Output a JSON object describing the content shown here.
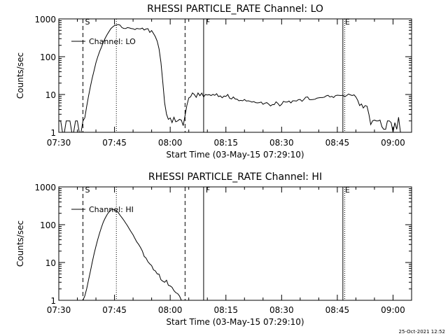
{
  "timestamp": "25-Oct-2021 12:52",
  "chart_data": [
    {
      "type": "line",
      "title": "RHESSI PARTICLE_RATE Channel: LO",
      "xlabel": "Start Time (03-May-15 07:29:10)",
      "ylabel": "Counts/sec",
      "yscale": "log",
      "xlim_minutes": [
        0,
        95
      ],
      "ylim": [
        1,
        1000
      ],
      "x_ticks": [
        {
          "min": 0,
          "label": "07:30"
        },
        {
          "min": 15,
          "label": "07:45"
        },
        {
          "min": 30,
          "label": "08:00"
        },
        {
          "min": 45,
          "label": "08:15"
        },
        {
          "min": 60,
          "label": "08:30"
        },
        {
          "min": 75,
          "label": "08:45"
        },
        {
          "min": 90,
          "label": "09:00"
        }
      ],
      "y_ticks": [
        {
          "value": 1,
          "label": "1"
        },
        {
          "value": 10,
          "label": "10"
        },
        {
          "value": 100,
          "label": "100"
        },
        {
          "value": 1000,
          "label": "1000"
        }
      ],
      "legend": {
        "label": "Channel: LO",
        "placement": "top-left"
      },
      "markers": [
        {
          "min": 6.5,
          "style": "dashed",
          "label": "S"
        },
        {
          "min": 15.5,
          "style": "dotted",
          "label": ""
        },
        {
          "min": 34,
          "style": "dashed",
          "label": ""
        },
        {
          "min": 39,
          "style": "solid",
          "label": "F"
        },
        {
          "min": 76.5,
          "style": "solid",
          "label": "E"
        },
        {
          "min": 77,
          "style": "dotted",
          "label": ""
        },
        {
          "min": 95,
          "style": "dotted",
          "label": ""
        }
      ],
      "series": [
        {
          "name": "Channel: LO",
          "x": [
            0,
            0.5,
            1,
            1.5,
            2,
            2.5,
            3,
            3.5,
            4,
            4.5,
            5,
            5.5,
            6,
            6.5,
            7,
            7.5,
            8,
            8.5,
            9,
            9.5,
            10,
            10.5,
            11,
            11.5,
            12,
            12.5,
            13,
            13.5,
            14,
            14.5,
            15,
            15.5,
            16,
            16.5,
            17,
            17.5,
            18,
            18.5,
            19,
            19.5,
            20,
            20.5,
            21,
            21.5,
            22,
            22.5,
            23,
            23.5,
            24,
            24.5,
            25,
            25.5,
            26,
            26.5,
            27,
            27.5,
            28,
            28.5,
            29,
            29.5,
            30,
            30.5,
            31,
            31.5,
            32,
            32.5,
            33,
            33.5,
            34,
            34.5,
            35,
            35.5,
            36,
            36.5,
            37,
            37.5,
            38,
            38.5,
            39,
            39.5,
            40,
            40.5,
            41,
            41.5,
            42,
            42.5,
            43,
            43.5,
            44,
            44.5,
            45,
            45.5,
            46,
            46.5,
            47,
            47.5,
            48,
            48.5,
            49,
            49.5,
            50,
            50.5,
            51,
            51.5,
            52,
            52.5,
            53,
            53.5,
            54,
            54.5,
            55,
            55.5,
            56,
            56.5,
            57,
            57.5,
            58,
            58.5,
            59,
            59.5,
            60,
            60.5,
            61,
            61.5,
            62,
            62.5,
            63,
            63.5,
            64,
            64.5,
            65,
            65.5,
            66,
            66.5,
            67,
            67.5,
            68,
            68.5,
            69,
            69.5,
            70,
            70.5,
            71,
            71.5,
            72,
            72.5,
            73,
            73.5,
            74,
            74.5,
            75,
            75.5,
            76,
            76.5,
            77,
            77.5,
            78,
            78.5,
            79,
            79.5,
            80,
            80.5,
            81,
            81.5,
            82,
            82.5,
            83,
            83.5,
            84,
            84.5,
            85,
            85.5,
            86,
            86.5,
            87,
            87.5,
            88,
            88.5,
            89,
            89.5,
            90,
            90.5,
            91,
            91.5,
            92,
            92.5,
            93,
            93.5,
            94,
            94.5,
            95
          ],
          "y": [
            2,
            2,
            1,
            1,
            2,
            2,
            2,
            1,
            1,
            2,
            2,
            1,
            1,
            2,
            2.4,
            4.8,
            8.9,
            16,
            27,
            43,
            70,
            100,
            139,
            180,
            246,
            310,
            383,
            459,
            550,
            612,
            668,
            690,
            710,
            685,
            590,
            560,
            556,
            590,
            578,
            558,
            548,
            520,
            560,
            548,
            545,
            572,
            507,
            541,
            552,
            440,
            490,
            410,
            339,
            257,
            162,
            71,
            22,
            6,
            3,
            2.2,
            2.4,
            1.8,
            2.5,
            1.9,
            2,
            2.2,
            2.1,
            1.5,
            2.8,
            5.2,
            8.1,
            8.7,
            11,
            10,
            8.4,
            11,
            9.3,
            10.9,
            8.6,
            10,
            9.7,
            9.9,
            9.4,
            10.1,
            9.5,
            10.5,
            8.8,
            9.2,
            8.2,
            9.1,
            8.9,
            10,
            8,
            7.6,
            8.6,
            7.6,
            7.5,
            6.8,
            7,
            6.8,
            7.4,
            6.7,
            6.8,
            6.6,
            6.3,
            6.5,
            6.1,
            6,
            6.1,
            6.3,
            5.5,
            5.9,
            6.1,
            5.6,
            5,
            5.4,
            5.4,
            6.4,
            5.8,
            5,
            5.5,
            6.6,
            6.3,
            6.3,
            6.7,
            6,
            6.8,
            6.8,
            6.7,
            7.3,
            7.4,
            6.6,
            7.4,
            8.5,
            8.6,
            7.3,
            7.3,
            7.4,
            7.5,
            8,
            8.2,
            8.3,
            8.3,
            8.5,
            9.2,
            9.5,
            8.6,
            8.9,
            8.3,
            9.3,
            9.6,
            9.5,
            9.4,
            9.6,
            8.7,
            9.4,
            10.3,
            9.8,
            9.4,
            9.8,
            8.6,
            7,
            5.1,
            5.6,
            4.4,
            5.1,
            4.9,
            3,
            1.6,
            2,
            2.1,
            2,
            2,
            2.1,
            1.4,
            1.2,
            1.2,
            2,
            2,
            1.8,
            1,
            1.8,
            1.2,
            2.5,
            1,
            1,
            1,
            1,
            1,
            1,
            1
          ]
        }
      ]
    },
    {
      "type": "line",
      "title": "RHESSI PARTICLE_RATE Channel: HI",
      "xlabel": "Start Time (03-May-15 07:29:10)",
      "ylabel": "Counts/sec",
      "yscale": "log",
      "xlim_minutes": [
        0,
        95
      ],
      "ylim": [
        1,
        1000
      ],
      "x_ticks": [
        {
          "min": 0,
          "label": "07:30"
        },
        {
          "min": 15,
          "label": "07:45"
        },
        {
          "min": 30,
          "label": "08:00"
        },
        {
          "min": 45,
          "label": "08:15"
        },
        {
          "min": 60,
          "label": "08:30"
        },
        {
          "min": 75,
          "label": "08:45"
        },
        {
          "min": 90,
          "label": "09:00"
        }
      ],
      "y_ticks": [
        {
          "value": 1,
          "label": "1"
        },
        {
          "value": 10,
          "label": "10"
        },
        {
          "value": 100,
          "label": "100"
        },
        {
          "value": 1000,
          "label": "1000"
        }
      ],
      "legend": {
        "label": "Channel: HI",
        "placement": "top-left"
      },
      "markers": [
        {
          "min": 6.5,
          "style": "dashed",
          "label": "S"
        },
        {
          "min": 15.5,
          "style": "dotted",
          "label": ""
        },
        {
          "min": 34,
          "style": "dashed",
          "label": ""
        },
        {
          "min": 39,
          "style": "solid",
          "label": "F"
        },
        {
          "min": 76.5,
          "style": "solid",
          "label": "E"
        },
        {
          "min": 77,
          "style": "dotted",
          "label": ""
        },
        {
          "min": 95,
          "style": "dotted",
          "label": ""
        }
      ],
      "series": [
        {
          "name": "Channel: HI",
          "x": [
            6.5,
            7,
            7.5,
            8,
            8.5,
            9,
            9.5,
            10,
            10.5,
            11,
            11.5,
            12,
            12.5,
            13,
            13.5,
            14,
            14.5,
            15,
            15.5,
            16,
            16.5,
            17,
            17.5,
            18,
            18.5,
            19,
            19.5,
            20,
            20.5,
            21,
            21.5,
            22,
            22.5,
            23,
            23.5,
            24,
            24.5,
            25,
            25.5,
            26,
            26.5,
            27,
            27.5,
            28,
            28.5,
            29,
            29.5,
            30,
            30.5,
            31,
            31.5,
            32,
            32.5,
            33
          ],
          "y": [
            1,
            1.3,
            2,
            3.4,
            5.8,
            10,
            17,
            27,
            41,
            61,
            86,
            119,
            150,
            185,
            216,
            245,
            255,
            250,
            234,
            210,
            178,
            154,
            132,
            111,
            94,
            77,
            64,
            54,
            43,
            35,
            30,
            25,
            20,
            14.5,
            13,
            10.5,
            9.2,
            8.3,
            6.4,
            6,
            5,
            4.9,
            3.5,
            3.2,
            3,
            3.4,
            2.5,
            2.4,
            2.2,
            1.8,
            1.6,
            1.5,
            1.3,
            1
          ]
        }
      ]
    }
  ]
}
